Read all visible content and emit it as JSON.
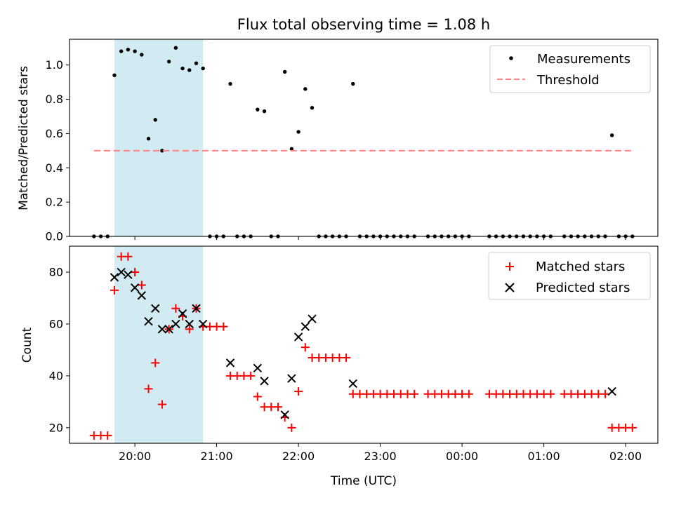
{
  "chart_data": [
    {
      "type": "scatter",
      "title": "Flux total observing time = 1.08 h",
      "xlabel": "",
      "ylabel": "Matched/Predicted stars",
      "ylim": [
        0,
        1.15
      ],
      "yticks": [
        "0.0",
        "0.2",
        "0.4",
        "0.6",
        "0.8",
        "1.0"
      ],
      "legend_position": "top-right",
      "highlight": {
        "start": "19:45",
        "end": "20:50",
        "color": "#add8e6"
      },
      "series": [
        {
          "name": "Measurements",
          "marker": "dot",
          "color": "#000000",
          "points": [
            [
              "19:30",
              0.0
            ],
            [
              "19:35",
              0.0
            ],
            [
              "19:40",
              0.0
            ],
            [
              "19:45",
              0.94
            ],
            [
              "19:50",
              1.08
            ],
            [
              "19:55",
              1.09
            ],
            [
              "20:00",
              1.08
            ],
            [
              "20:05",
              1.06
            ],
            [
              "20:10",
              0.57
            ],
            [
              "20:15",
              0.68
            ],
            [
              "20:20",
              0.5
            ],
            [
              "20:25",
              1.02
            ],
            [
              "20:30",
              1.1
            ],
            [
              "20:35",
              0.98
            ],
            [
              "20:40",
              0.97
            ],
            [
              "20:45",
              1.01
            ],
            [
              "20:50",
              0.98
            ],
            [
              "20:55",
              0.0
            ],
            [
              "21:00",
              0.0
            ],
            [
              "21:05",
              0.0
            ],
            [
              "21:10",
              0.89
            ],
            [
              "21:15",
              0.0
            ],
            [
              "21:20",
              0.0
            ],
            [
              "21:25",
              0.0
            ],
            [
              "21:30",
              0.74
            ],
            [
              "21:35",
              0.73
            ],
            [
              "21:40",
              0.0
            ],
            [
              "21:45",
              0.0
            ],
            [
              "21:50",
              0.96
            ],
            [
              "21:55",
              0.51
            ],
            [
              "22:00",
              0.61
            ],
            [
              "22:05",
              0.86
            ],
            [
              "22:10",
              0.75
            ],
            [
              "22:15",
              0.0
            ],
            [
              "22:20",
              0.0
            ],
            [
              "22:25",
              0.0
            ],
            [
              "22:30",
              0.0
            ],
            [
              "22:35",
              0.0
            ],
            [
              "22:40",
              0.89
            ],
            [
              "22:45",
              0.0
            ],
            [
              "22:50",
              0.0
            ],
            [
              "22:55",
              0.0
            ],
            [
              "23:00",
              0.0
            ],
            [
              "23:05",
              0.0
            ],
            [
              "23:10",
              0.0
            ],
            [
              "23:15",
              0.0
            ],
            [
              "23:20",
              0.0
            ],
            [
              "23:25",
              0.0
            ],
            [
              "23:35",
              0.0
            ],
            [
              "23:40",
              0.0
            ],
            [
              "23:45",
              0.0
            ],
            [
              "23:50",
              0.0
            ],
            [
              "23:55",
              0.0
            ],
            [
              "00:00",
              0.0
            ],
            [
              "00:05",
              0.0
            ],
            [
              "00:20",
              0.0
            ],
            [
              "00:25",
              0.0
            ],
            [
              "00:30",
              0.0
            ],
            [
              "00:35",
              0.0
            ],
            [
              "00:40",
              0.0
            ],
            [
              "00:45",
              0.0
            ],
            [
              "00:50",
              0.0
            ],
            [
              "00:55",
              0.0
            ],
            [
              "01:00",
              0.0
            ],
            [
              "01:05",
              0.0
            ],
            [
              "01:15",
              0.0
            ],
            [
              "01:20",
              0.0
            ],
            [
              "01:25",
              0.0
            ],
            [
              "01:30",
              0.0
            ],
            [
              "01:35",
              0.0
            ],
            [
              "01:40",
              0.0
            ],
            [
              "01:45",
              0.0
            ],
            [
              "01:50",
              0.59
            ],
            [
              "01:55",
              0.0
            ],
            [
              "02:00",
              0.0
            ],
            [
              "02:05",
              0.0
            ]
          ]
        },
        {
          "name": "Threshold",
          "marker": "dashed-line",
          "color": "#ff7f7f",
          "points": [
            [
              "19:30",
              0.5
            ],
            [
              "02:05",
              0.5
            ]
          ]
        }
      ]
    },
    {
      "type": "scatter",
      "title": "",
      "xlabel": "Time (UTC)",
      "ylabel": "Count",
      "ylim": [
        14,
        90
      ],
      "yticks": [
        "20",
        "40",
        "60",
        "80"
      ],
      "xticks": [
        "20:00",
        "21:00",
        "22:00",
        "23:00",
        "00:00",
        "01:00",
        "02:00"
      ],
      "legend_position": "top-right",
      "highlight": {
        "start": "19:45",
        "end": "20:50",
        "color": "#add8e6"
      },
      "series": [
        {
          "name": "Matched stars",
          "marker": "plus",
          "color": "#ff0000",
          "points": [
            [
              "19:30",
              17
            ],
            [
              "19:35",
              17
            ],
            [
              "19:40",
              17
            ],
            [
              "19:45",
              73
            ],
            [
              "19:50",
              86
            ],
            [
              "19:55",
              86
            ],
            [
              "20:00",
              80
            ],
            [
              "20:05",
              75
            ],
            [
              "20:10",
              35
            ],
            [
              "20:15",
              45
            ],
            [
              "20:20",
              29
            ],
            [
              "20:25",
              58
            ],
            [
              "20:30",
              66
            ],
            [
              "20:35",
              63
            ],
            [
              "20:40",
              58
            ],
            [
              "20:45",
              66
            ],
            [
              "20:50",
              59
            ],
            [
              "20:55",
              59
            ],
            [
              "21:00",
              59
            ],
            [
              "21:05",
              59
            ],
            [
              "21:10",
              40
            ],
            [
              "21:15",
              40
            ],
            [
              "21:20",
              40
            ],
            [
              "21:25",
              40
            ],
            [
              "21:30",
              32
            ],
            [
              "21:35",
              28
            ],
            [
              "21:40",
              28
            ],
            [
              "21:45",
              28
            ],
            [
              "21:50",
              24
            ],
            [
              "21:55",
              20
            ],
            [
              "22:00",
              34
            ],
            [
              "22:05",
              51
            ],
            [
              "22:10",
              47
            ],
            [
              "22:15",
              47
            ],
            [
              "22:20",
              47
            ],
            [
              "22:25",
              47
            ],
            [
              "22:30",
              47
            ],
            [
              "22:35",
              47
            ],
            [
              "22:40",
              33
            ],
            [
              "22:45",
              33
            ],
            [
              "22:50",
              33
            ],
            [
              "22:55",
              33
            ],
            [
              "23:00",
              33
            ],
            [
              "23:05",
              33
            ],
            [
              "23:10",
              33
            ],
            [
              "23:15",
              33
            ],
            [
              "23:20",
              33
            ],
            [
              "23:25",
              33
            ],
            [
              "23:35",
              33
            ],
            [
              "23:40",
              33
            ],
            [
              "23:45",
              33
            ],
            [
              "23:50",
              33
            ],
            [
              "23:55",
              33
            ],
            [
              "00:00",
              33
            ],
            [
              "00:05",
              33
            ],
            [
              "00:20",
              33
            ],
            [
              "00:25",
              33
            ],
            [
              "00:30",
              33
            ],
            [
              "00:35",
              33
            ],
            [
              "00:40",
              33
            ],
            [
              "00:45",
              33
            ],
            [
              "00:50",
              33
            ],
            [
              "00:55",
              33
            ],
            [
              "01:00",
              33
            ],
            [
              "01:05",
              33
            ],
            [
              "01:15",
              33
            ],
            [
              "01:20",
              33
            ],
            [
              "01:25",
              33
            ],
            [
              "01:30",
              33
            ],
            [
              "01:35",
              33
            ],
            [
              "01:40",
              33
            ],
            [
              "01:45",
              33
            ],
            [
              "01:50",
              20
            ],
            [
              "01:55",
              20
            ],
            [
              "02:00",
              20
            ],
            [
              "02:05",
              20
            ]
          ]
        },
        {
          "name": "Predicted stars",
          "marker": "x",
          "color": "#000000",
          "points": [
            [
              "19:45",
              78
            ],
            [
              "19:50",
              80
            ],
            [
              "19:55",
              79
            ],
            [
              "20:00",
              74
            ],
            [
              "20:05",
              71
            ],
            [
              "20:10",
              61
            ],
            [
              "20:15",
              66
            ],
            [
              "20:20",
              58
            ],
            [
              "20:25",
              58
            ],
            [
              "20:30",
              60
            ],
            [
              "20:35",
              64
            ],
            [
              "20:40",
              60
            ],
            [
              "20:45",
              66
            ],
            [
              "20:50",
              60
            ],
            [
              "21:10",
              45
            ],
            [
              "21:30",
              43
            ],
            [
              "21:35",
              38
            ],
            [
              "21:50",
              25
            ],
            [
              "21:55",
              39
            ],
            [
              "22:00",
              55
            ],
            [
              "22:05",
              59
            ],
            [
              "22:10",
              62
            ],
            [
              "22:40",
              37
            ],
            [
              "01:50",
              34
            ]
          ]
        }
      ]
    }
  ]
}
